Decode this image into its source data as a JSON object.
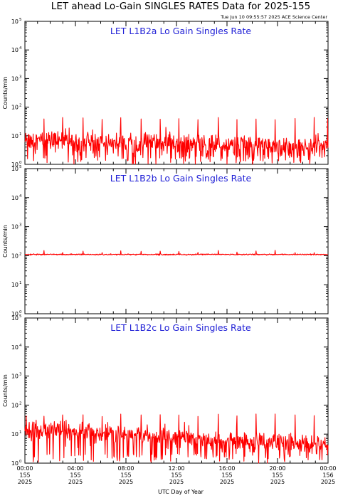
{
  "page": {
    "title": "LET ahead Lo-Gain SINGLES RATES Data for 2025-155",
    "timestamp": "Tue Jun 10 09:55:57 2025 ACE Science Center",
    "xlabel": "UTC Day of Year"
  },
  "colors": {
    "series": "#ff0000",
    "panel_title": "#1f1fd6",
    "axes": "#000000"
  },
  "chart_data": [
    {
      "type": "line",
      "title": "LET L1B2a Lo Gain Singles Rate",
      "ylabel": "Counts/min",
      "yscale": "log",
      "ylim": [
        1,
        100000
      ],
      "y_ticks": [
        "10^0",
        "10^1",
        "10^2",
        "10^3",
        "10^4",
        "10^5"
      ],
      "xlim": [
        "2025-155 00:00",
        "2025-156 00:00"
      ],
      "baseline": {
        "start": 7,
        "end": 4,
        "noise": 0.35,
        "dropout_rate": 0.14
      },
      "spike_value": 40,
      "spike_times_hours": [
        1.5,
        3.0,
        4.6,
        6.1,
        7.6,
        9.2,
        10.7,
        12.2,
        13.7,
        15.3,
        16.8,
        18.3,
        19.8,
        21.4,
        22.9,
        23.95
      ],
      "grid": false
    },
    {
      "type": "line",
      "title": "LET L1B2b Lo Gain Singles Rate",
      "ylabel": "Counts/min",
      "yscale": "log",
      "ylim": [
        1,
        100000
      ],
      "y_ticks": [
        "10^0",
        "10^1",
        "10^2",
        "10^3",
        "10^4",
        "10^5"
      ],
      "xlim": [
        "2025-155 00:00",
        "2025-156 00:00"
      ],
      "baseline": {
        "start": 110,
        "end": 110,
        "noise": 0.02,
        "dropout_rate": 0
      },
      "spike_value": 140,
      "spike_times_hours": [
        1.5,
        3.0,
        4.6,
        6.1,
        7.6,
        9.2,
        10.7,
        12.2,
        13.7,
        15.3,
        16.8,
        18.3,
        19.8,
        21.4,
        22.9
      ],
      "grid": false
    },
    {
      "type": "line",
      "title": "LET L1B2c Lo Gain Singles Rate",
      "ylabel": "Counts/min",
      "yscale": "log",
      "ylim": [
        1,
        100000
      ],
      "y_ticks": [
        "10^0",
        "10^1",
        "10^2",
        "10^3",
        "10^4",
        "10^5"
      ],
      "xlim": [
        "2025-155 00:00",
        "2025-156 00:00"
      ],
      "baseline": {
        "start": 14,
        "end": 4,
        "noise": 0.33,
        "dropout_rate": 0.12
      },
      "spike_value": 45,
      "spike_times_hours": [
        0.1,
        1.5,
        3.0,
        4.6,
        6.1,
        7.6,
        9.2,
        10.7,
        12.2,
        13.7,
        15.3,
        16.8,
        18.3,
        19.8,
        21.4,
        22.9
      ],
      "grid": false
    }
  ],
  "x_ticks": [
    {
      "time": "00:00",
      "doy": "155",
      "year": "2025"
    },
    {
      "time": "04:00",
      "doy": "155",
      "year": "2025"
    },
    {
      "time": "08:00",
      "doy": "155",
      "year": "2025"
    },
    {
      "time": "12:00",
      "doy": "155",
      "year": "2025"
    },
    {
      "time": "16:00",
      "doy": "155",
      "year": "2025"
    },
    {
      "time": "20:00",
      "doy": "155",
      "year": "2025"
    },
    {
      "time": "00:00",
      "doy": "156",
      "year": "2025"
    }
  ]
}
